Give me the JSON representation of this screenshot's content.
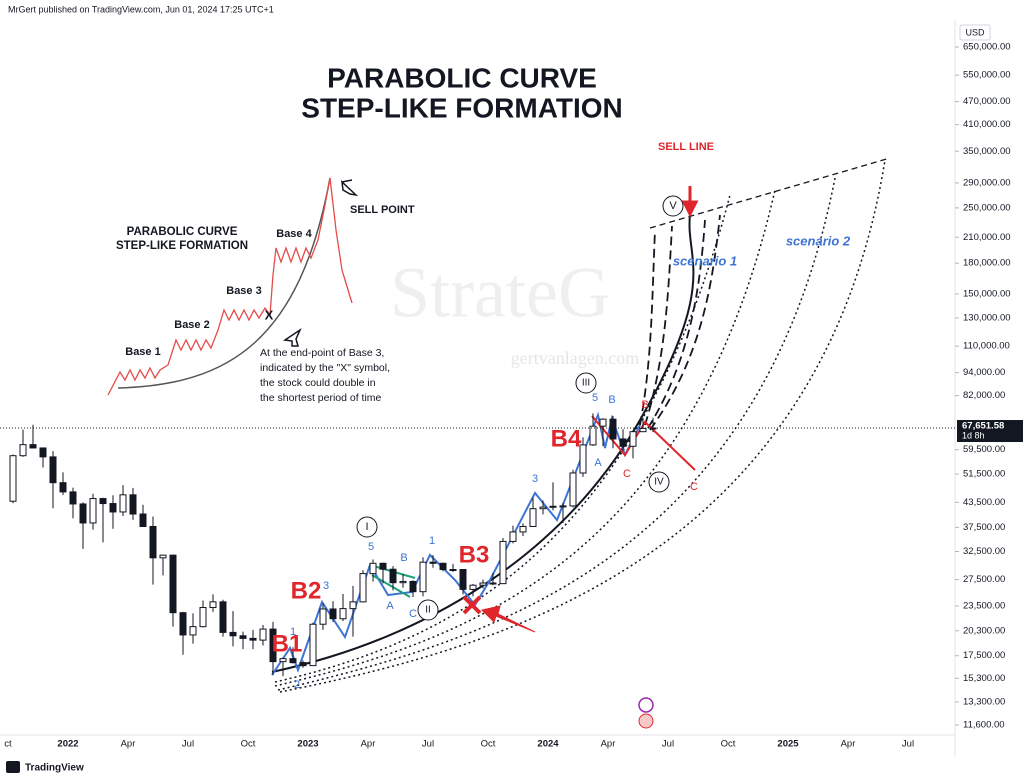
{
  "header": {
    "byline": "MrGert published on TradingView.com, Jun 01, 2024 17:25 UTC+1",
    "currency": "USD"
  },
  "footer": {
    "brand": "TradingView"
  },
  "chart_data": {
    "type": "candlestick",
    "title": "PARABOLIC CURVE",
    "subtitle": "STEP-LIKE FORMATION",
    "categories": [
      "ct",
      null,
      null,
      null,
      null,
      null,
      "2022",
      null,
      null,
      null,
      null,
      null,
      "Apr",
      null,
      null,
      null,
      null,
      null,
      "Jul",
      null,
      null,
      null,
      null,
      null,
      "Oct",
      null,
      null,
      null,
      null,
      null,
      "2023",
      null,
      null,
      null,
      null,
      null,
      "Apr",
      null,
      null,
      null,
      null,
      null,
      "Jul",
      null,
      null,
      null,
      null,
      null,
      "Oct",
      null,
      null,
      null,
      null,
      null,
      "2024",
      null,
      null,
      null,
      null,
      null,
      "Apr",
      null,
      null,
      null,
      null,
      null,
      "Jul",
      null,
      null,
      null,
      null,
      null,
      "Oct",
      null,
      null,
      null,
      null,
      null,
      "2025",
      null,
      null,
      null,
      null,
      null,
      "Apr",
      null,
      null,
      null,
      null,
      null,
      "Jul",
      null,
      null,
      null
    ],
    "open": [
      43800,
      57400,
      61300,
      60100,
      57000,
      48900,
      46300,
      43100,
      38500,
      44500,
      43200,
      41100,
      45500,
      40600,
      37700,
      31300,
      31800,
      22600,
      19800,
      20800,
      23300,
      24100,
      20100,
      19700,
      19400,
      19200,
      20500,
      16900,
      17200,
      16800,
      16500,
      21100,
      23100,
      21800,
      23150,
      24100,
      28500,
      30300,
      29250,
      27000,
      27200,
      25600,
      30500,
      30300,
      29200,
      29200,
      25950,
      26600,
      26950,
      26850,
      34500,
      36500,
      37700,
      41900,
      42300,
      42500,
      42600,
      51800,
      61200,
      68400,
      71300,
      63400,
      60700,
      66200,
      67500,
      null,
      null,
      null,
      null,
      null,
      null,
      null,
      null,
      null,
      null,
      null,
      null,
      null,
      null,
      null,
      null,
      null,
      null,
      null,
      null,
      null,
      null,
      null,
      null,
      null,
      null,
      null,
      null,
      null
    ],
    "high": [
      57800,
      67000,
      69000,
      60200,
      59000,
      52000,
      47500,
      43500,
      45800,
      44700,
      45400,
      48200,
      47400,
      42900,
      40000,
      31900,
      31900,
      22700,
      22500,
      24300,
      25200,
      24400,
      22800,
      20200,
      20400,
      21000,
      21400,
      17300,
      18400,
      17000,
      21300,
      23900,
      24200,
      25250,
      26500,
      29100,
      31000,
      30400,
      29800,
      28400,
      27400,
      31400,
      31800,
      30400,
      30200,
      29300,
      26800,
      27500,
      28600,
      35200,
      37900,
      38400,
      44700,
      44000,
      49000,
      43400,
      52800,
      64000,
      73800,
      71700,
      72700,
      67200,
      66500,
      71900,
      71900,
      null,
      null,
      null,
      null,
      null,
      null,
      null,
      null,
      null,
      null,
      null,
      null,
      null,
      null,
      null,
      null,
      null,
      null,
      null,
      null,
      null,
      null,
      null,
      null,
      null,
      null,
      null,
      null,
      null
    ],
    "low": [
      43300,
      57000,
      60000,
      53500,
      42000,
      45500,
      39600,
      33000,
      37000,
      34300,
      37200,
      40100,
      39200,
      37600,
      26700,
      28200,
      20800,
      17600,
      18800,
      20700,
      22700,
      19600,
      18500,
      18200,
      18200,
      18600,
      15600,
      15500,
      16700,
      16300,
      16500,
      20400,
      21400,
      21500,
      19600,
      24000,
      27200,
      26900,
      25800,
      26200,
      24800,
      24900,
      29500,
      28900,
      28800,
      25200,
      24900,
      26100,
      26600,
      26800,
      34100,
      35600,
      37700,
      40500,
      41500,
      38500,
      42200,
      50600,
      60800,
      60800,
      60000,
      59200,
      56500,
      66000,
      66000,
      null,
      null,
      null,
      null,
      null,
      null,
      null,
      null,
      null,
      null,
      null,
      null,
      null,
      null,
      null,
      null,
      null,
      null,
      null,
      null,
      null,
      null,
      null,
      null,
      null,
      null,
      null,
      null,
      null
    ],
    "close": [
      57400,
      61300,
      60100,
      57000,
      48900,
      46300,
      43100,
      38500,
      44500,
      43200,
      41100,
      45500,
      40600,
      37700,
      31300,
      31800,
      22600,
      19800,
      20800,
      23300,
      24100,
      20100,
      19700,
      19400,
      19200,
      20500,
      16900,
      17200,
      16800,
      16500,
      21100,
      23100,
      21800,
      23150,
      24100,
      28500,
      30300,
      29250,
      27000,
      27200,
      25600,
      30500,
      30300,
      29200,
      29200,
      25950,
      26600,
      26950,
      26850,
      34500,
      36500,
      37700,
      41900,
      42300,
      42500,
      42600,
      51800,
      61200,
      68400,
      71300,
      63400,
      60700,
      66200,
      67500,
      67650,
      null,
      null,
      null,
      null,
      null,
      null,
      null,
      null,
      null,
      null,
      null,
      null,
      null,
      null,
      null,
      null,
      null,
      null,
      null,
      null,
      null,
      null,
      null,
      null,
      null,
      null,
      null,
      null,
      null
    ],
    "color_up": "#ffffff",
    "color_down": "#131722",
    "log_scale": true,
    "ylim": [
      10930,
      754000
    ],
    "yticks": [
      {
        "value": 650000,
        "label": "650,000.00"
      },
      {
        "value": 550000,
        "label": "550,000.00"
      },
      {
        "value": 470000,
        "label": "470,000.00"
      },
      {
        "value": 410000,
        "label": "410,000.00"
      },
      {
        "value": 350000,
        "label": "350,000.00"
      },
      {
        "value": 290000,
        "label": "290,000.00"
      },
      {
        "value": 250000,
        "label": "250,000.00"
      },
      {
        "value": 210000,
        "label": "210,000.00"
      },
      {
        "value": 180000,
        "label": "180,000.00"
      },
      {
        "value": 150000,
        "label": "150,000.00"
      },
      {
        "value": 130000,
        "label": "130,000.00"
      },
      {
        "value": 110000,
        "label": "110,000.00"
      },
      {
        "value": 94000,
        "label": "94,000.00"
      },
      {
        "value": 82000,
        "label": "82,000.00"
      },
      {
        "value": 59500,
        "label": "59,500.00"
      },
      {
        "value": 51500,
        "label": "51,500.00"
      },
      {
        "value": 43500,
        "label": "43,500.00"
      },
      {
        "value": 37500,
        "label": "37,500.00"
      },
      {
        "value": 32500,
        "label": "32,500.00"
      },
      {
        "value": 27500,
        "label": "27,500.00"
      },
      {
        "value": 23500,
        "label": "23,500.00"
      },
      {
        "value": 20300,
        "label": "20,300.00"
      },
      {
        "value": 17500,
        "label": "17,500.00"
      },
      {
        "value": 15300,
        "label": "15,300.00"
      },
      {
        "value": 13300,
        "label": "13,300.00"
      },
      {
        "value": 11600,
        "label": "11,600.00"
      }
    ],
    "last_price": {
      "value": 67651.58,
      "label": "67,651.58"
    },
    "countdown": "1d 8h",
    "annotations": [
      {
        "text": "SELL LINE",
        "color": "#e0262b"
      },
      {
        "text": "scenario 1",
        "color": "#3d74d6"
      },
      {
        "text": "scenario 2",
        "color": "#3d74d6"
      },
      {
        "text": "B1",
        "color": "#e0262b"
      },
      {
        "text": "B2",
        "color": "#e0262b"
      },
      {
        "text": "B3",
        "color": "#e0262b"
      },
      {
        "text": "B4",
        "color": "#e0262b"
      },
      {
        "text": "V",
        "color": "#131722",
        "circled": true
      },
      {
        "text": "III",
        "color": "#131722",
        "circled": true
      },
      {
        "text": "I",
        "color": "#131722",
        "circled": true
      },
      {
        "text": "II",
        "color": "#131722",
        "circled": true
      },
      {
        "text": "IV",
        "color": "#131722",
        "circled": true
      },
      {
        "text": "1",
        "color": "#3d74d6"
      },
      {
        "text": "2",
        "color": "#3d74d6"
      },
      {
        "text": "3",
        "color": "#3d74d6"
      },
      {
        "text": "5",
        "color": "#3d74d6"
      },
      {
        "text": "B",
        "color": "#3d74d6"
      },
      {
        "text": "A",
        "color": "#3d74d6"
      },
      {
        "text": "C",
        "color": "#3d74d6"
      },
      {
        "text": "1",
        "color": "#3d74d6"
      },
      {
        "text": "3",
        "color": "#3d74d6"
      },
      {
        "text": "5",
        "color": "#3d74d6"
      },
      {
        "text": "B",
        "color": "#3d74d6"
      },
      {
        "text": "A",
        "color": "#3d74d6"
      },
      {
        "text": "B",
        "color": "#e0262b"
      },
      {
        "text": "C",
        "color": "#e0262b"
      },
      {
        "text": "C",
        "color": "#e0262b"
      }
    ],
    "inset": {
      "title": "PARABOLIC CURVE",
      "subtitle": "STEP-LIKE FORMATION",
      "bases": [
        "Base 1",
        "Base 2",
        "Base 3",
        "Base 4"
      ],
      "sell_point": "SELL POINT",
      "marker": "X",
      "note": [
        "At the end-point of Base 3,",
        "indicated by the \"X\" symbol,",
        "the stock could double in",
        "the shortest period of time"
      ]
    },
    "watermark": [
      "StrateG",
      "gertvanlagen.com"
    ]
  }
}
